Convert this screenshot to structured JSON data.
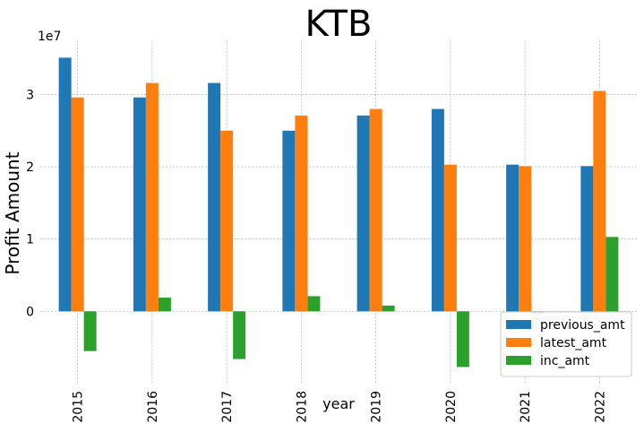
{
  "chart_data": {
    "type": "bar",
    "title": "KTB",
    "xlabel": "year",
    "ylabel": "Profit Amount",
    "y_offset_label": "1e7",
    "y_scale": 10000000,
    "categories": [
      "2015",
      "2016",
      "2017",
      "2018",
      "2019",
      "2020",
      "2021",
      "2022"
    ],
    "ylim": [
      -10000000,
      37500000
    ],
    "yticks": [
      0,
      10000000,
      20000000,
      30000000
    ],
    "ytick_labels": [
      "0",
      "1",
      "2",
      "3"
    ],
    "grid": true,
    "legend_position": "lower-right",
    "series": [
      {
        "name": "previous_amt",
        "color": "#1f77b4",
        "values": [
          35100000,
          29600000,
          31600000,
          25000000,
          27100000,
          28000000,
          20300000,
          20100000
        ]
      },
      {
        "name": "latest_amt",
        "color": "#ff7f0e",
        "values": [
          29600000,
          31600000,
          25000000,
          27100000,
          28000000,
          20300000,
          20100000,
          30500000
        ]
      },
      {
        "name": "inc_amt",
        "color": "#2ca02c",
        "values": [
          -5500000,
          1900000,
          -6600000,
          2100000,
          800000,
          -7700000,
          -300000,
          10300000
        ]
      }
    ]
  }
}
